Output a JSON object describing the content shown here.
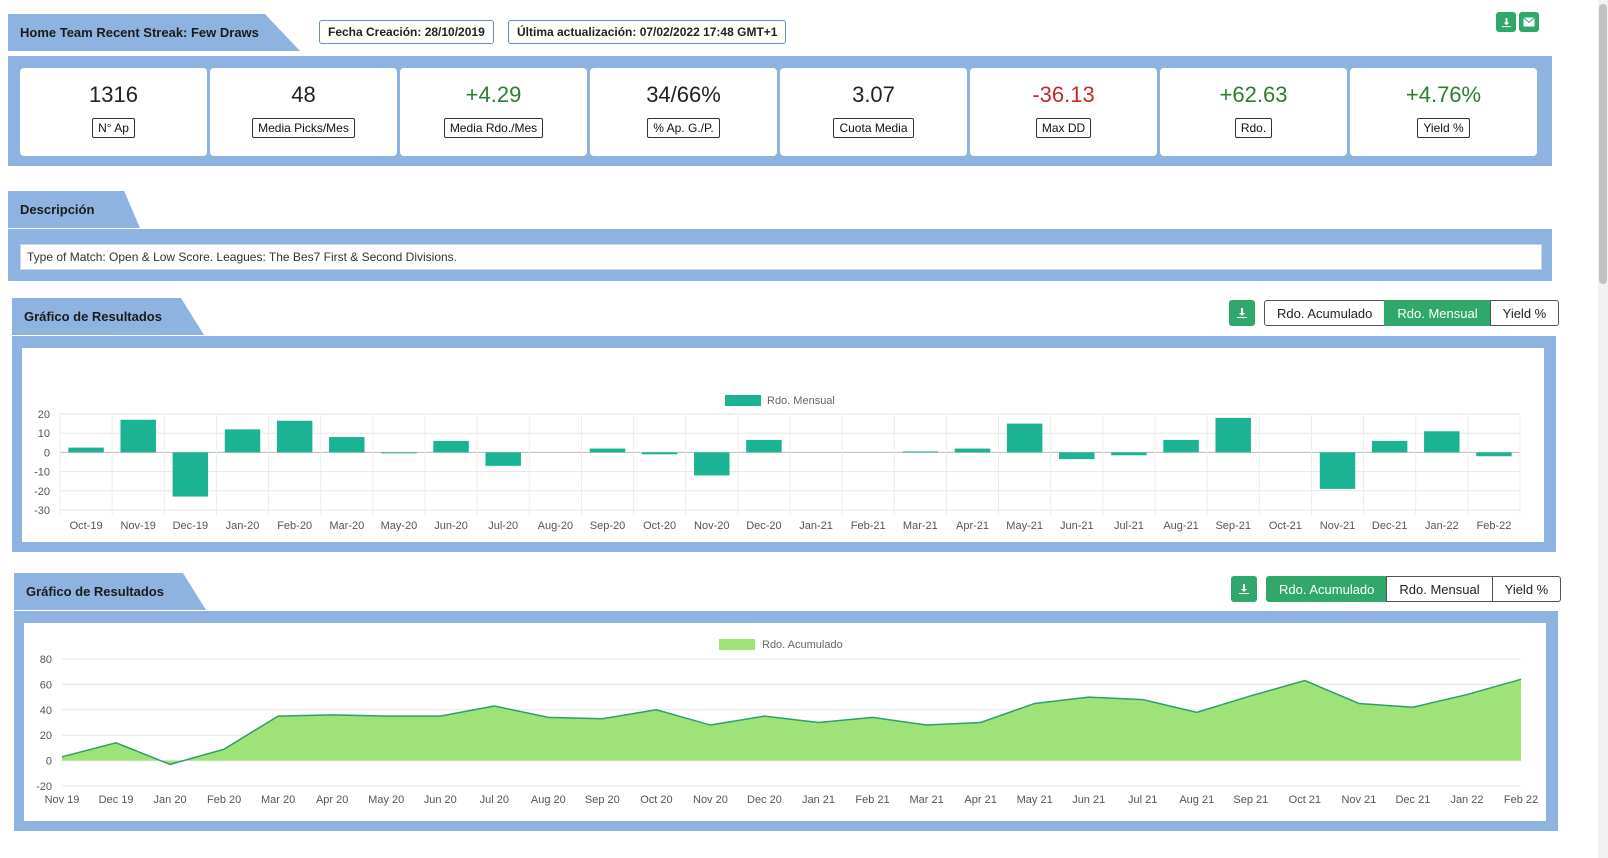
{
  "header": {
    "title": "Home Team Recent Streak: Few Draws",
    "created": "Fecha Creación: 28/10/2019",
    "updated": "Última actualización: 07/02/2022 17:48 GMT+1",
    "download_icon": "download-icon",
    "email_icon": "envelope-icon"
  },
  "stats": [
    {
      "value": "1316",
      "label": "N° Ap",
      "tone": "neutral"
    },
    {
      "value": "48",
      "label": "Media Picks/Mes",
      "tone": "neutral"
    },
    {
      "value": "+4.29",
      "label": "Media Rdo./Mes",
      "tone": "pos"
    },
    {
      "value": "34/66%",
      "label": "% Ap. G./P.",
      "tone": "neutral"
    },
    {
      "value": "3.07",
      "label": "Cuota Media",
      "tone": "neutral"
    },
    {
      "value": "-36.13",
      "label": "Max DD",
      "tone": "neg"
    },
    {
      "value": "+62.63",
      "label": "Rdo.",
      "tone": "pos"
    },
    {
      "value": "+4.76%",
      "label": "Yield %",
      "tone": "pos"
    }
  ],
  "description": {
    "title": "Descripción",
    "text": "Type of Match: Open & Low Score. Leagues: The Bes7 First & Second Divisions."
  },
  "chart1_header": {
    "title": "Gráfico de Resultados",
    "buttons": [
      "Rdo. Acumulado",
      "Rdo. Mensual",
      "Yield %"
    ],
    "active": 1
  },
  "chart2_header": {
    "title": "Gráfico de Resultados",
    "buttons": [
      "Rdo. Acumulado",
      "Rdo. Mensual",
      "Yield %"
    ],
    "active": 0
  },
  "colors": {
    "band": "#8fb3e0",
    "bar": "#1cb394",
    "area": "#a0e27a",
    "area_line": "#2e9e6a",
    "button_green": "#2fa86a"
  },
  "chart_data": [
    {
      "type": "bar",
      "legend": "Rdo. Mensual",
      "categories": [
        "Oct-19",
        "Nov-19",
        "Dec-19",
        "Jan-20",
        "Feb-20",
        "Mar-20",
        "May-20",
        "Jun-20",
        "Jul-20",
        "Aug-20",
        "Sep-20",
        "Oct-20",
        "Nov-20",
        "Dec-20",
        "Jan-21",
        "Feb-21",
        "Mar-21",
        "Apr-21",
        "May-21",
        "Jun-21",
        "Jul-21",
        "Aug-21",
        "Sep-21",
        "Oct-21",
        "Nov-21",
        "Dec-21",
        "Jan-22",
        "Feb-22"
      ],
      "series": [
        {
          "name": "Rdo. Mensual",
          "values": [
            2.5,
            17,
            -23,
            12,
            16.5,
            8,
            -0.5,
            6,
            -7,
            0,
            2,
            -1,
            -12,
            6.5,
            0,
            0,
            0.5,
            2,
            15,
            -3.5,
            -1.5,
            6.5,
            18,
            0,
            -19,
            6,
            11,
            -2
          ]
        }
      ],
      "yticks": [
        20,
        10,
        0,
        -10,
        -20,
        -30
      ],
      "ylim": [
        -30,
        20
      ]
    },
    {
      "type": "area",
      "legend": "Rdo. Acumulado",
      "x": [
        "Nov 19",
        "Dec 19",
        "Jan 20",
        "Feb 20",
        "Mar 20",
        "Apr 20",
        "May 20",
        "Jun 20",
        "Jul 20",
        "Aug 20",
        "Sep 20",
        "Oct 20",
        "Nov 20",
        "Dec 20",
        "Jan 21",
        "Feb 21",
        "Mar 21",
        "Apr 21",
        "May 21",
        "Jun 21",
        "Jul 21",
        "Aug 21",
        "Sep 21",
        "Oct 21",
        "Nov 21",
        "Dec 21",
        "Jan 22",
        "Feb 22"
      ],
      "series": [
        {
          "name": "Rdo. Acumulado",
          "values": [
            3,
            14,
            -3,
            9,
            35,
            36,
            35,
            35,
            43,
            34,
            33,
            40,
            28,
            35,
            30,
            34,
            28,
            30,
            45,
            50,
            48,
            38,
            51,
            63,
            45,
            42,
            52,
            64
          ]
        }
      ],
      "yticks": [
        80,
        60,
        40,
        20,
        0,
        -20
      ],
      "ylim": [
        -20,
        80
      ]
    }
  ]
}
